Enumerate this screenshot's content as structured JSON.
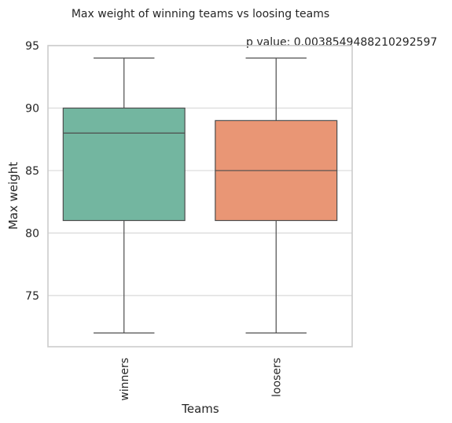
{
  "chart_data": {
    "type": "box",
    "title": "Max weight of winning teams vs loosing teams",
    "annotation": "p value: 0.0038549488210292597",
    "xlabel": "Teams",
    "ylabel": "Max weight",
    "categories": [
      "winners",
      "loosers"
    ],
    "boxes": [
      {
        "category": "winners",
        "min": 72,
        "q1": 81,
        "median": 88,
        "q3": 90,
        "max": 94,
        "color": "#73b6a0"
      },
      {
        "category": "loosers",
        "min": 72,
        "q1": 81,
        "median": 85,
        "q3": 89,
        "max": 94,
        "color": "#e99675"
      }
    ],
    "ylim": [
      70.9,
      95
    ],
    "yticks": [
      75,
      80,
      85,
      90,
      95
    ],
    "grid": true,
    "legend": "none"
  }
}
